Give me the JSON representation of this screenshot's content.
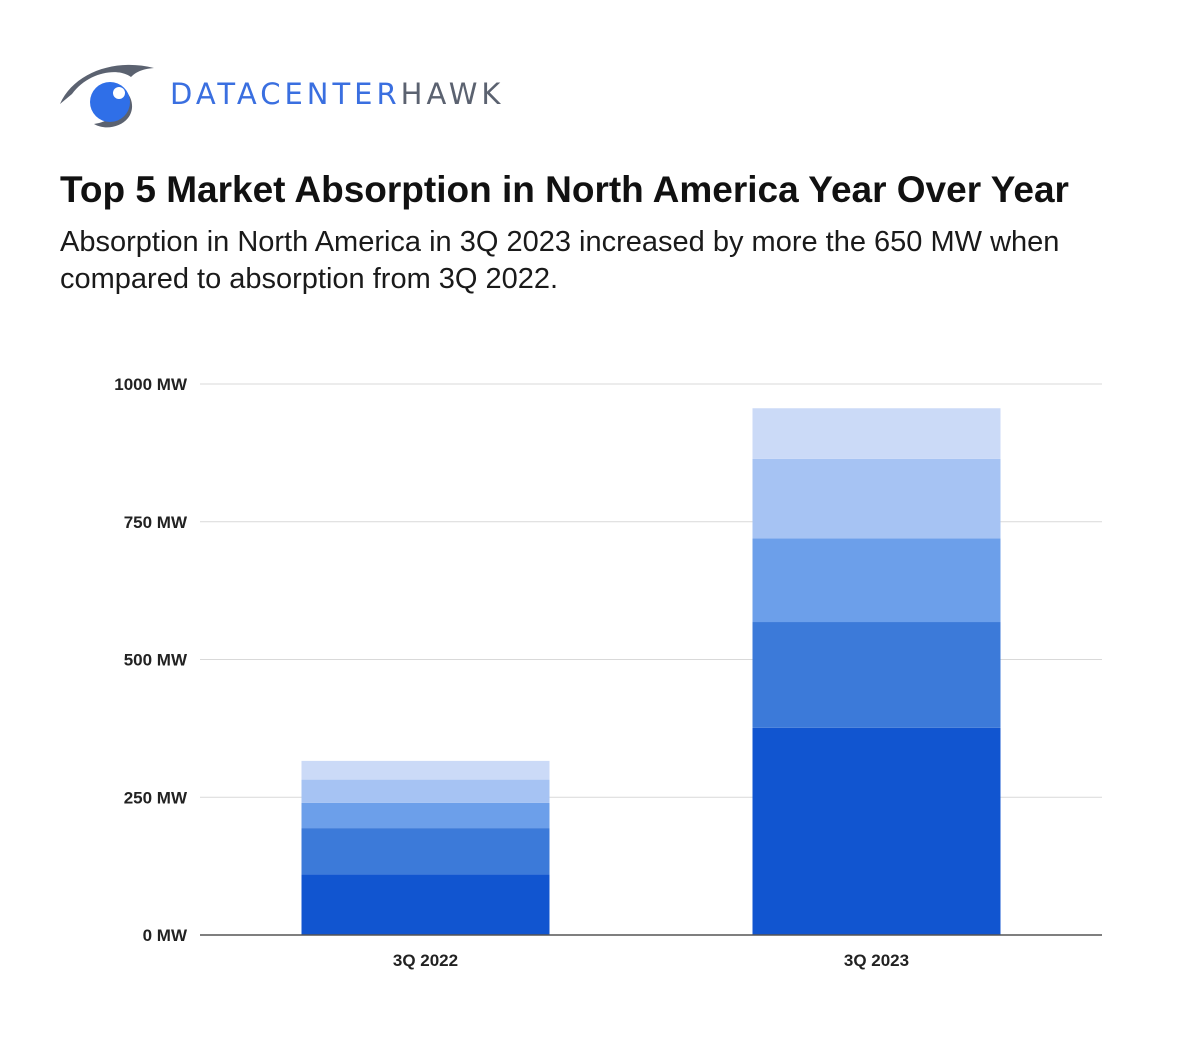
{
  "brand": {
    "name_part1": "DATACENTER",
    "name_part2": "HAWK",
    "icon": "hawk-eye-icon",
    "primary_color": "#3a6fe0",
    "secondary_color": "#5b6270"
  },
  "chart_data": {
    "type": "bar",
    "stacked": true,
    "title": "Top 5 Market Absorption in North America Year Over Year",
    "subtitle": "Absorption in North America in 3Q 2023 increased by more the 650 MW when compared to absorption from 3Q 2022.",
    "categories": [
      "3Q 2022",
      "3Q 2023"
    ],
    "series": [
      {
        "values": [
          110,
          376
        ],
        "color": "#1155d0"
      },
      {
        "values": [
          84,
          192
        ],
        "color": "#3c7ad9"
      },
      {
        "values": [
          46,
          152
        ],
        "color": "#6c9fea"
      },
      {
        "values": [
          42,
          144
        ],
        "color": "#a6c3f3"
      },
      {
        "values": [
          34,
          92
        ],
        "color": "#cbdaf7"
      }
    ],
    "ylim": [
      0,
      1000
    ],
    "yticks": [
      0,
      250,
      500,
      750,
      1000
    ],
    "ytick_labels": [
      "0 MW",
      "250 MW",
      "500 MW",
      "750 MW",
      "1000 MW"
    ],
    "grid": true,
    "xlabel": "",
    "ylabel": ""
  }
}
